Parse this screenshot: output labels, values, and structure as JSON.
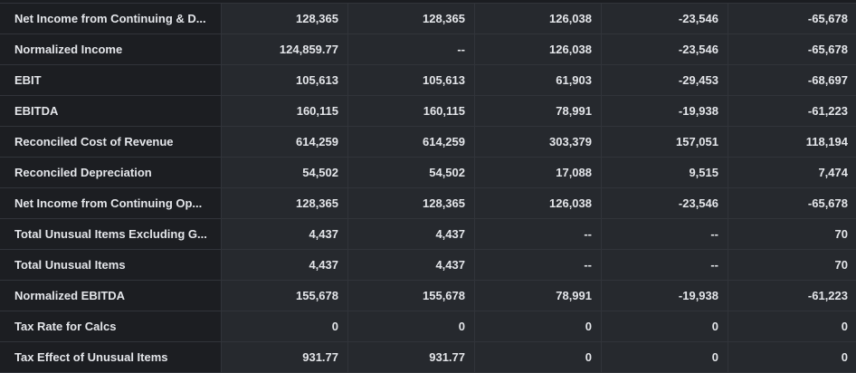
{
  "table": {
    "rows": [
      {
        "label": "Net Income from Continuing & D...",
        "values": [
          "128,365",
          "128,365",
          "126,038",
          "-23,546",
          "-65,678"
        ]
      },
      {
        "label": "Normalized Income",
        "values": [
          "124,859.77",
          "--",
          "126,038",
          "-23,546",
          "-65,678"
        ]
      },
      {
        "label": "EBIT",
        "values": [
          "105,613",
          "105,613",
          "61,903",
          "-29,453",
          "-68,697"
        ]
      },
      {
        "label": "EBITDA",
        "values": [
          "160,115",
          "160,115",
          "78,991",
          "-19,938",
          "-61,223"
        ]
      },
      {
        "label": "Reconciled Cost of Revenue",
        "values": [
          "614,259",
          "614,259",
          "303,379",
          "157,051",
          "118,194"
        ]
      },
      {
        "label": "Reconciled Depreciation",
        "values": [
          "54,502",
          "54,502",
          "17,088",
          "9,515",
          "7,474"
        ]
      },
      {
        "label": "Net Income from Continuing Op...",
        "values": [
          "128,365",
          "128,365",
          "126,038",
          "-23,546",
          "-65,678"
        ]
      },
      {
        "label": "Total Unusual Items Excluding G...",
        "values": [
          "4,437",
          "4,437",
          "--",
          "--",
          "70"
        ]
      },
      {
        "label": "Total Unusual Items",
        "values": [
          "4,437",
          "4,437",
          "--",
          "--",
          "70"
        ]
      },
      {
        "label": "Normalized EBITDA",
        "values": [
          "155,678",
          "155,678",
          "78,991",
          "-19,938",
          "-61,223"
        ]
      },
      {
        "label": "Tax Rate for Calcs",
        "values": [
          "0",
          "0",
          "0",
          "0",
          "0"
        ]
      },
      {
        "label": "Tax Effect of Unusual Items",
        "values": [
          "931.77",
          "931.77",
          "0",
          "0",
          "0"
        ]
      }
    ]
  }
}
